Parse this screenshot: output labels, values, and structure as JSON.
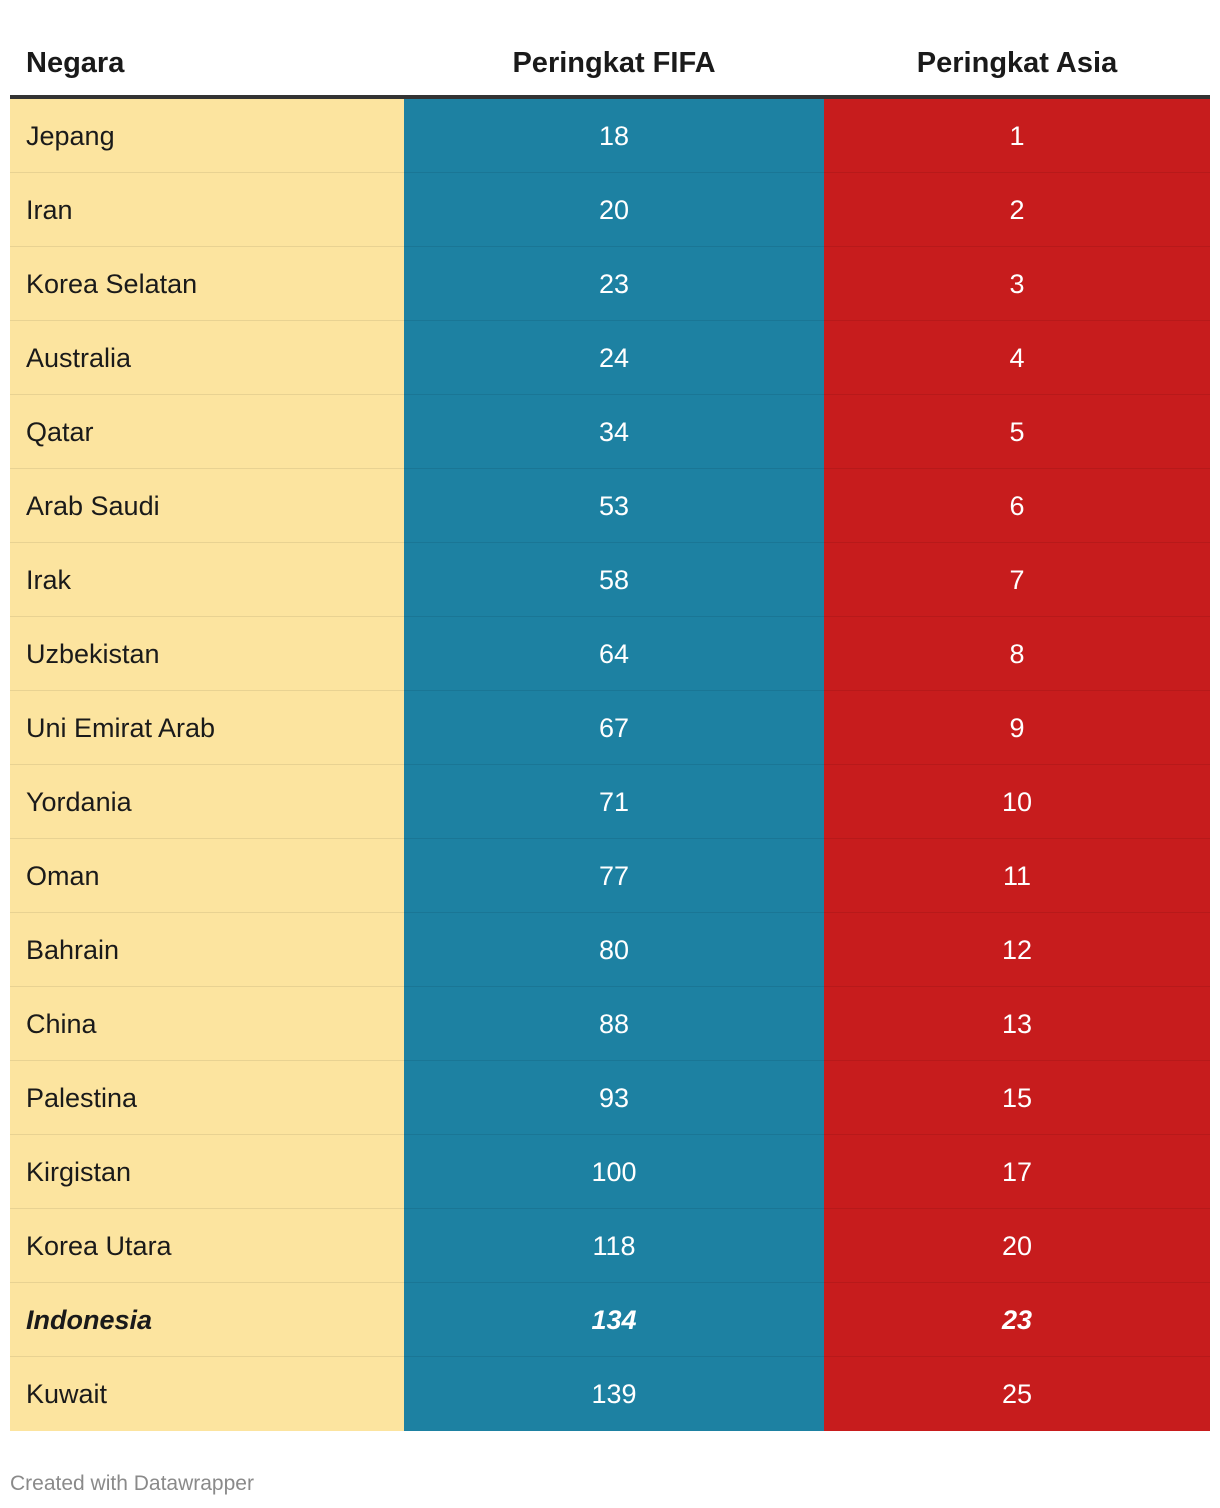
{
  "chart_data": {
    "type": "table",
    "columns": [
      "Negara",
      "Peringkat FIFA",
      "Peringkat Asia"
    ],
    "rows": [
      {
        "country": "Jepang",
        "fifa": "18",
        "asia": "1",
        "highlight": false
      },
      {
        "country": "Iran",
        "fifa": "20",
        "asia": "2",
        "highlight": false
      },
      {
        "country": "Korea Selatan",
        "fifa": "23",
        "asia": "3",
        "highlight": false
      },
      {
        "country": "Australia",
        "fifa": "24",
        "asia": "4",
        "highlight": false
      },
      {
        "country": "Qatar",
        "fifa": "34",
        "asia": "5",
        "highlight": false
      },
      {
        "country": "Arab Saudi",
        "fifa": "53",
        "asia": "6",
        "highlight": false
      },
      {
        "country": "Irak",
        "fifa": "58",
        "asia": "7",
        "highlight": false
      },
      {
        "country": "Uzbekistan",
        "fifa": "64",
        "asia": "8",
        "highlight": false
      },
      {
        "country": "Uni Emirat Arab",
        "fifa": "67",
        "asia": "9",
        "highlight": false
      },
      {
        "country": "Yordania",
        "fifa": "71",
        "asia": "10",
        "highlight": false
      },
      {
        "country": "Oman",
        "fifa": "77",
        "asia": "11",
        "highlight": false
      },
      {
        "country": "Bahrain",
        "fifa": "80",
        "asia": "12",
        "highlight": false
      },
      {
        "country": "China",
        "fifa": "88",
        "asia": "13",
        "highlight": false
      },
      {
        "country": "Palestina",
        "fifa": "93",
        "asia": "15",
        "highlight": false
      },
      {
        "country": "Kirgistan",
        "fifa": "100",
        "asia": "17",
        "highlight": false
      },
      {
        "country": "Korea Utara",
        "fifa": "118",
        "asia": "20",
        "highlight": false
      },
      {
        "country": "Indonesia",
        "fifa": "134",
        "asia": "23",
        "highlight": true
      },
      {
        "country": "Kuwait",
        "fifa": "139",
        "asia": "25",
        "highlight": false
      }
    ],
    "colors": {
      "country_column": "#fce49f",
      "fifa_column": "#1d81a2",
      "asia_column": "#c71c1d"
    }
  },
  "footer": {
    "credit": "Created with Datawrapper"
  }
}
